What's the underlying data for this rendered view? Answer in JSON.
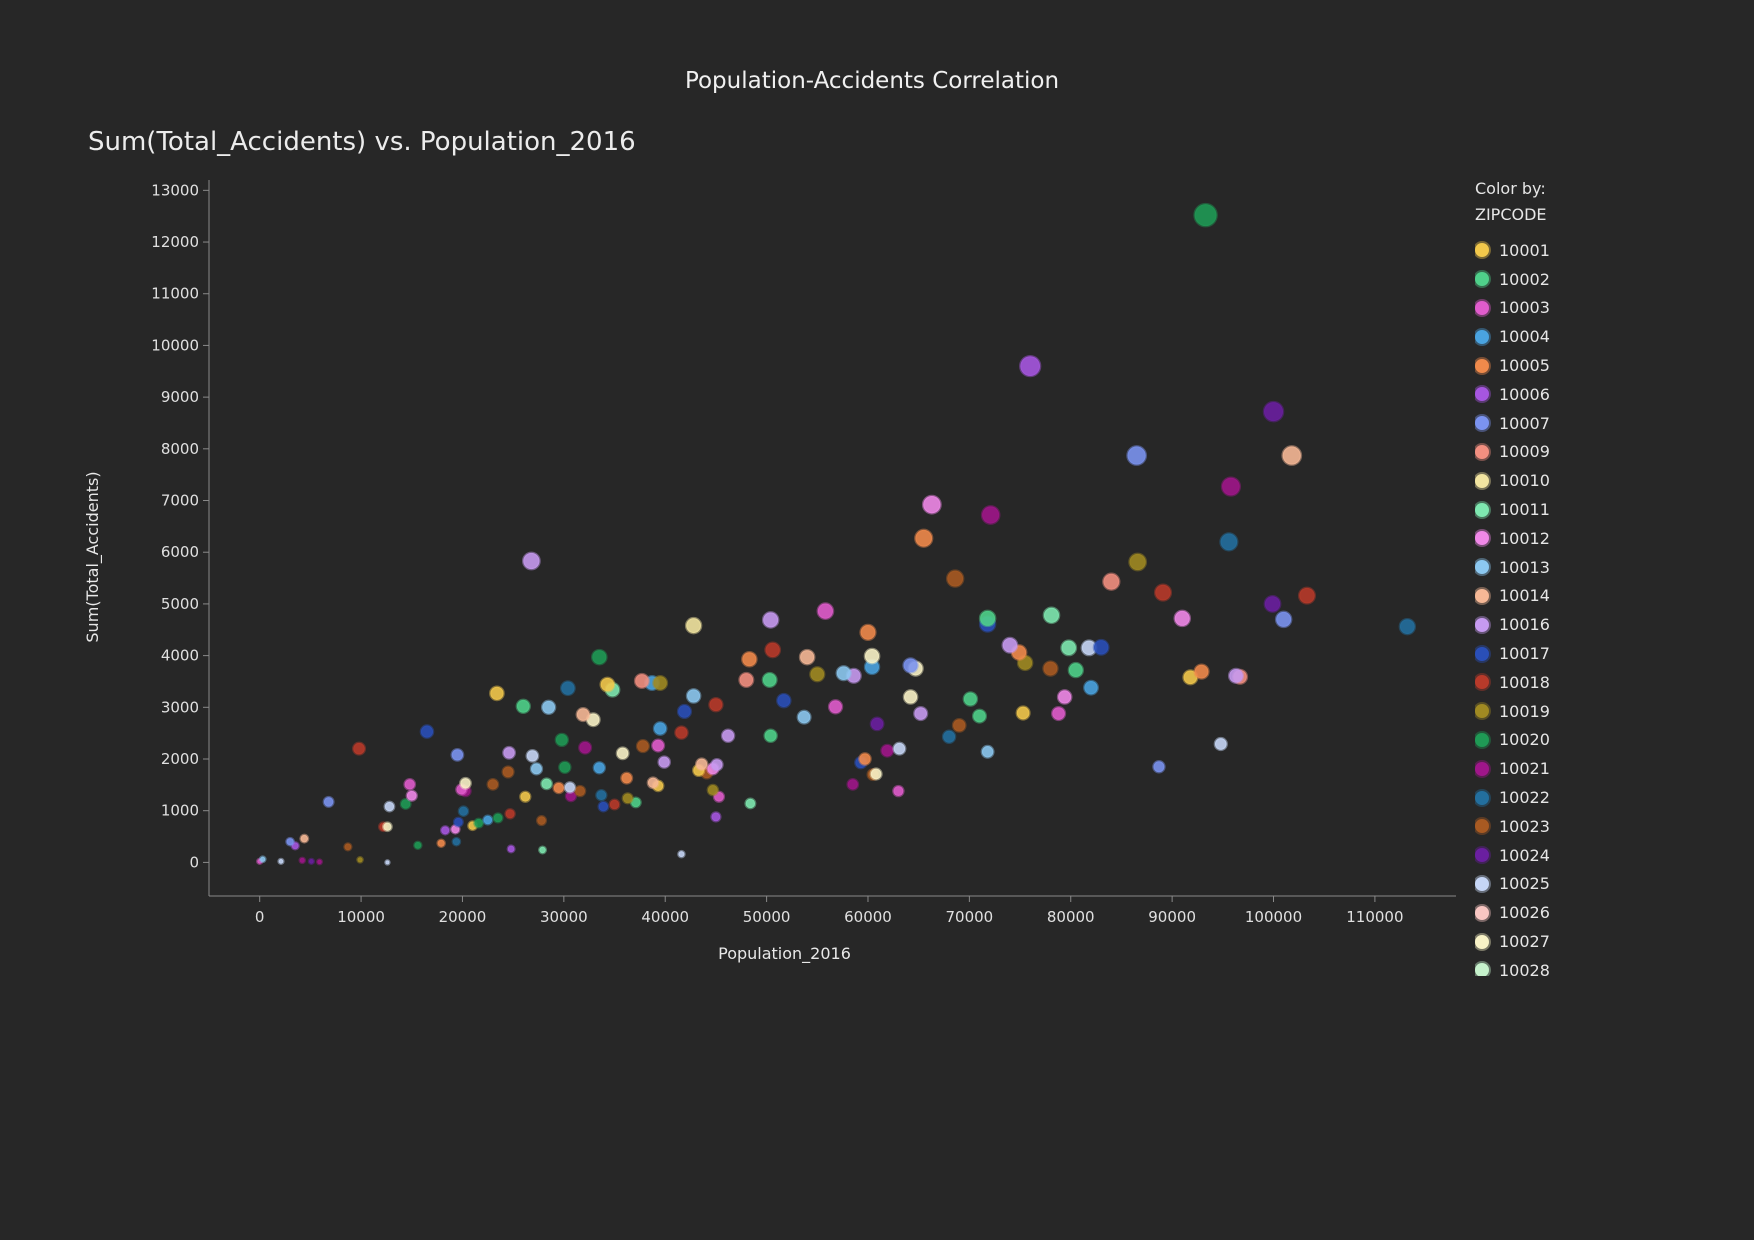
{
  "dashboard_title": "Population-Accidents Correlation",
  "legend": {
    "heading_line1": "Color by:",
    "heading_line2": "ZIPCODE"
  },
  "chart_data": {
    "type": "scatter",
    "title": "Sum(Total_Accidents) vs. Population_2016",
    "xlabel": "Population_2016",
    "ylabel": "Sum(Total_Accidents)",
    "xlim": [
      -5000,
      118000
    ],
    "ylim": [
      -650,
      13200
    ],
    "x_ticks": [
      0,
      10000,
      20000,
      30000,
      40000,
      50000,
      60000,
      70000,
      80000,
      90000,
      100000,
      110000
    ],
    "y_ticks": [
      0,
      1000,
      2000,
      3000,
      4000,
      5000,
      6000,
      7000,
      8000,
      9000,
      10000,
      11000,
      12000,
      13000
    ],
    "legend_title": "Color by: ZIPCODE",
    "legend_position": "right",
    "grid": false,
    "color_by": "ZIPCODE",
    "series": [
      {
        "name": "10001",
        "color": "#f2c84b"
      },
      {
        "name": "10002",
        "color": "#4fd08a"
      },
      {
        "name": "10003",
        "color": "#e05ccc"
      },
      {
        "name": "10004",
        "color": "#4aa3e0"
      },
      {
        "name": "10005",
        "color": "#f08a4b"
      },
      {
        "name": "10006",
        "color": "#a656e0"
      },
      {
        "name": "10007",
        "color": "#7b93f0"
      },
      {
        "name": "10009",
        "color": "#f28f80"
      },
      {
        "name": "10010",
        "color": "#f2e4a0"
      },
      {
        "name": "10011",
        "color": "#7ee8b0"
      },
      {
        "name": "10012",
        "color": "#f088e8"
      },
      {
        "name": "10013",
        "color": "#8cc8f0"
      },
      {
        "name": "10014",
        "color": "#f6b896"
      },
      {
        "name": "10016",
        "color": "#c69af0"
      },
      {
        "name": "10017",
        "color": "#2a4fb8"
      },
      {
        "name": "10018",
        "color": "#b83a2a"
      },
      {
        "name": "10019",
        "color": "#a08a22"
      },
      {
        "name": "10020",
        "color": "#1f9a55"
      },
      {
        "name": "10021",
        "color": "#a0168a"
      },
      {
        "name": "10022",
        "color": "#236f9e"
      },
      {
        "name": "10023",
        "color": "#a85a22"
      },
      {
        "name": "10024",
        "color": "#6a1fa0"
      },
      {
        "name": "10025",
        "color": "#c6d6f6"
      },
      {
        "name": "10026",
        "color": "#f8c6c2"
      },
      {
        "name": "10027",
        "color": "#f8f2c6"
      },
      {
        "name": "10028",
        "color": "#c6f2cc"
      }
    ],
    "points": [
      {
        "x": 93300,
        "y": 12520,
        "zip": "10020"
      },
      {
        "x": 76000,
        "y": 9600,
        "zip": "10006"
      },
      {
        "x": 100000,
        "y": 8720,
        "zip": "10024"
      },
      {
        "x": 86500,
        "y": 7870,
        "zip": "10007"
      },
      {
        "x": 101800,
        "y": 7870,
        "zip": "10014"
      },
      {
        "x": 95800,
        "y": 7270,
        "zip": "10021"
      },
      {
        "x": 66300,
        "y": 6920,
        "zip": "10012"
      },
      {
        "x": 72100,
        "y": 6720,
        "zip": "10021"
      },
      {
        "x": 65500,
        "y": 6270,
        "zip": "10005"
      },
      {
        "x": 95600,
        "y": 6200,
        "zip": "10022"
      },
      {
        "x": 26800,
        "y": 5830,
        "zip": "10016"
      },
      {
        "x": 86600,
        "y": 5810,
        "zip": "10019"
      },
      {
        "x": 68600,
        "y": 5490,
        "zip": "10023"
      },
      {
        "x": 84000,
        "y": 5430,
        "zip": "10009"
      },
      {
        "x": 89100,
        "y": 5220,
        "zip": "10018"
      },
      {
        "x": 103300,
        "y": 5160,
        "zip": "10018"
      },
      {
        "x": 99900,
        "y": 5000,
        "zip": "10024"
      },
      {
        "x": 55800,
        "y": 4860,
        "zip": "10003"
      },
      {
        "x": 78100,
        "y": 4780,
        "zip": "10011"
      },
      {
        "x": 71800,
        "y": 4720,
        "zip": "10002"
      },
      {
        "x": 91000,
        "y": 4720,
        "zip": "10012"
      },
      {
        "x": 101000,
        "y": 4700,
        "zip": "10007"
      },
      {
        "x": 50400,
        "y": 4690,
        "zip": "10016"
      },
      {
        "x": 71800,
        "y": 4610,
        "zip": "10017"
      },
      {
        "x": 42800,
        "y": 4580,
        "zip": "10010"
      },
      {
        "x": 113200,
        "y": 4560,
        "zip": "10022"
      },
      {
        "x": 60000,
        "y": 4450,
        "zip": "10005"
      },
      {
        "x": 74000,
        "y": 4200,
        "zip": "10016"
      },
      {
        "x": 79800,
        "y": 4150,
        "zip": "10011"
      },
      {
        "x": 81800,
        "y": 4150,
        "zip": "10025"
      },
      {
        "x": 83000,
        "y": 4160,
        "zip": "10017"
      },
      {
        "x": 50600,
        "y": 4110,
        "zip": "10018"
      },
      {
        "x": 74900,
        "y": 4060,
        "zip": "10005"
      },
      {
        "x": 60400,
        "y": 3990,
        "zip": "10027"
      },
      {
        "x": 33500,
        "y": 3970,
        "zip": "10020"
      },
      {
        "x": 54000,
        "y": 3970,
        "zip": "10014"
      },
      {
        "x": 48300,
        "y": 3930,
        "zip": "10005"
      },
      {
        "x": 75500,
        "y": 3860,
        "zip": "10019"
      },
      {
        "x": 64200,
        "y": 3810,
        "zip": "10007"
      },
      {
        "x": 64700,
        "y": 3750,
        "zip": "10027"
      },
      {
        "x": 60400,
        "y": 3780,
        "zip": "10004"
      },
      {
        "x": 78000,
        "y": 3750,
        "zip": "10023"
      },
      {
        "x": 80500,
        "y": 3720,
        "zip": "10002"
      },
      {
        "x": 92900,
        "y": 3690,
        "zip": "10005"
      },
      {
        "x": 57600,
        "y": 3660,
        "zip": "10013"
      },
      {
        "x": 55000,
        "y": 3640,
        "zip": "10019"
      },
      {
        "x": 58600,
        "y": 3610,
        "zip": "10016"
      },
      {
        "x": 96300,
        "y": 3610,
        "zip": "10016"
      },
      {
        "x": 96700,
        "y": 3590,
        "zip": "10009"
      },
      {
        "x": 91800,
        "y": 3580,
        "zip": "10001"
      },
      {
        "x": 48000,
        "y": 3530,
        "zip": "10009"
      },
      {
        "x": 50300,
        "y": 3530,
        "zip": "10002"
      },
      {
        "x": 37700,
        "y": 3510,
        "zip": "10009"
      },
      {
        "x": 38700,
        "y": 3470,
        "zip": "10004"
      },
      {
        "x": 39500,
        "y": 3470,
        "zip": "10019"
      },
      {
        "x": 34300,
        "y": 3440,
        "zip": "10001"
      },
      {
        "x": 82000,
        "y": 3380,
        "zip": "10004"
      },
      {
        "x": 30400,
        "y": 3370,
        "zip": "10022"
      },
      {
        "x": 34800,
        "y": 3340,
        "zip": "10011"
      },
      {
        "x": 23400,
        "y": 3270,
        "zip": "10001"
      },
      {
        "x": 42800,
        "y": 3220,
        "zip": "10013"
      },
      {
        "x": 64200,
        "y": 3200,
        "zip": "10027"
      },
      {
        "x": 79400,
        "y": 3200,
        "zip": "10012"
      },
      {
        "x": 70100,
        "y": 3160,
        "zip": "10002"
      },
      {
        "x": 51700,
        "y": 3130,
        "zip": "10017"
      },
      {
        "x": 45000,
        "y": 3050,
        "zip": "10018"
      },
      {
        "x": 56800,
        "y": 3010,
        "zip": "10003"
      },
      {
        "x": 26000,
        "y": 3020,
        "zip": "10002"
      },
      {
        "x": 28500,
        "y": 3000,
        "zip": "10013"
      },
      {
        "x": 41900,
        "y": 2920,
        "zip": "10017"
      },
      {
        "x": 65200,
        "y": 2880,
        "zip": "10016"
      },
      {
        "x": 75300,
        "y": 2890,
        "zip": "10001"
      },
      {
        "x": 78800,
        "y": 2880,
        "zip": "10003"
      },
      {
        "x": 31900,
        "y": 2860,
        "zip": "10014"
      },
      {
        "x": 71000,
        "y": 2830,
        "zip": "10002"
      },
      {
        "x": 53700,
        "y": 2810,
        "zip": "10013"
      },
      {
        "x": 32900,
        "y": 2760,
        "zip": "10027"
      },
      {
        "x": 60900,
        "y": 2680,
        "zip": "10024"
      },
      {
        "x": 69000,
        "y": 2650,
        "zip": "10023"
      },
      {
        "x": 39500,
        "y": 2590,
        "zip": "10004"
      },
      {
        "x": 16500,
        "y": 2530,
        "zip": "10017"
      },
      {
        "x": 41600,
        "y": 2510,
        "zip": "10018"
      },
      {
        "x": 46200,
        "y": 2450,
        "zip": "10016"
      },
      {
        "x": 50400,
        "y": 2450,
        "zip": "10002"
      },
      {
        "x": 68000,
        "y": 2430,
        "zip": "10022"
      },
      {
        "x": 29800,
        "y": 2370,
        "zip": "10020"
      },
      {
        "x": 94800,
        "y": 2290,
        "zip": "10025"
      },
      {
        "x": 37800,
        "y": 2250,
        "zip": "10023"
      },
      {
        "x": 39300,
        "y": 2260,
        "zip": "10003"
      },
      {
        "x": 32100,
        "y": 2220,
        "zip": "10021"
      },
      {
        "x": 9800,
        "y": 2200,
        "zip": "10018"
      },
      {
        "x": 63100,
        "y": 2200,
        "zip": "10025"
      },
      {
        "x": 61900,
        "y": 2160,
        "zip": "10021"
      },
      {
        "x": 71800,
        "y": 2140,
        "zip": "10013"
      },
      {
        "x": 24600,
        "y": 2120,
        "zip": "10016"
      },
      {
        "x": 35800,
        "y": 2110,
        "zip": "10027"
      },
      {
        "x": 19500,
        "y": 2080,
        "zip": "10007"
      },
      {
        "x": 26900,
        "y": 2060,
        "zip": "10025"
      },
      {
        "x": 59700,
        "y": 2000,
        "zip": "10005"
      },
      {
        "x": 39900,
        "y": 1940,
        "zip": "10016"
      },
      {
        "x": 59300,
        "y": 1930,
        "zip": "10017"
      },
      {
        "x": 43600,
        "y": 1900,
        "zip": "10014"
      },
      {
        "x": 45100,
        "y": 1890,
        "zip": "10016"
      },
      {
        "x": 88700,
        "y": 1850,
        "zip": "10007"
      },
      {
        "x": 30100,
        "y": 1840,
        "zip": "10020"
      },
      {
        "x": 33500,
        "y": 1830,
        "zip": "10004"
      },
      {
        "x": 27300,
        "y": 1810,
        "zip": "10013"
      },
      {
        "x": 44700,
        "y": 1810,
        "zip": "10012"
      },
      {
        "x": 43300,
        "y": 1780,
        "zip": "10001"
      },
      {
        "x": 24500,
        "y": 1750,
        "zip": "10023"
      },
      {
        "x": 44100,
        "y": 1730,
        "zip": "10023"
      },
      {
        "x": 60800,
        "y": 1710,
        "zip": "10027"
      },
      {
        "x": 60500,
        "y": 1700,
        "zip": "10023"
      },
      {
        "x": 36200,
        "y": 1630,
        "zip": "10005"
      },
      {
        "x": 28300,
        "y": 1520,
        "zip": "10011"
      },
      {
        "x": 20300,
        "y": 1530,
        "zip": "10027"
      },
      {
        "x": 38800,
        "y": 1540,
        "zip": "10014"
      },
      {
        "x": 14800,
        "y": 1510,
        "zip": "10003"
      },
      {
        "x": 23000,
        "y": 1510,
        "zip": "10023"
      },
      {
        "x": 39300,
        "y": 1480,
        "zip": "10001"
      },
      {
        "x": 58500,
        "y": 1510,
        "zip": "10021"
      },
      {
        "x": 30600,
        "y": 1450,
        "zip": "10025"
      },
      {
        "x": 29500,
        "y": 1440,
        "zip": "10005"
      },
      {
        "x": 19900,
        "y": 1410,
        "zip": "10003"
      },
      {
        "x": 20300,
        "y": 1380,
        "zip": "10021"
      },
      {
        "x": 31600,
        "y": 1380,
        "zip": "10023"
      },
      {
        "x": 44700,
        "y": 1400,
        "zip": "10019"
      },
      {
        "x": 63000,
        "y": 1380,
        "zip": "10003"
      },
      {
        "x": 15000,
        "y": 1290,
        "zip": "10012"
      },
      {
        "x": 26200,
        "y": 1270,
        "zip": "10001"
      },
      {
        "x": 30700,
        "y": 1280,
        "zip": "10021"
      },
      {
        "x": 33700,
        "y": 1300,
        "zip": "10022"
      },
      {
        "x": 45300,
        "y": 1270,
        "zip": "10003"
      },
      {
        "x": 36300,
        "y": 1240,
        "zip": "10019"
      },
      {
        "x": 6800,
        "y": 1170,
        "zip": "10007"
      },
      {
        "x": 14400,
        "y": 1130,
        "zip": "10020"
      },
      {
        "x": 35000,
        "y": 1120,
        "zip": "10018"
      },
      {
        "x": 37100,
        "y": 1160,
        "zip": "10002"
      },
      {
        "x": 48400,
        "y": 1140,
        "zip": "10011"
      },
      {
        "x": 33900,
        "y": 1080,
        "zip": "10017"
      },
      {
        "x": 12800,
        "y": 1080,
        "zip": "10025"
      },
      {
        "x": 20100,
        "y": 990,
        "zip": "10022"
      },
      {
        "x": 24700,
        "y": 940,
        "zip": "10018"
      },
      {
        "x": 45000,
        "y": 880,
        "zip": "10006"
      },
      {
        "x": 23500,
        "y": 860,
        "zip": "10020"
      },
      {
        "x": 22500,
        "y": 820,
        "zip": "10004"
      },
      {
        "x": 27800,
        "y": 810,
        "zip": "10023"
      },
      {
        "x": 19600,
        "y": 780,
        "zip": "10017"
      },
      {
        "x": 21600,
        "y": 760,
        "zip": "10020"
      },
      {
        "x": 21000,
        "y": 710,
        "zip": "10001"
      },
      {
        "x": 12200,
        "y": 690,
        "zip": "10018"
      },
      {
        "x": 12600,
        "y": 690,
        "zip": "10027"
      },
      {
        "x": 19300,
        "y": 640,
        "zip": "10012"
      },
      {
        "x": 18300,
        "y": 620,
        "zip": "10006"
      },
      {
        "x": 3000,
        "y": 400,
        "zip": "10007"
      },
      {
        "x": 4400,
        "y": 460,
        "zip": "10014"
      },
      {
        "x": 19400,
        "y": 400,
        "zip": "10022"
      },
      {
        "x": 17900,
        "y": 370,
        "zip": "10005"
      },
      {
        "x": 3500,
        "y": 320,
        "zip": "10006"
      },
      {
        "x": 15600,
        "y": 330,
        "zip": "10020"
      },
      {
        "x": 8700,
        "y": 300,
        "zip": "10023"
      },
      {
        "x": 24800,
        "y": 260,
        "zip": "10006"
      },
      {
        "x": 27900,
        "y": 240,
        "zip": "10011"
      },
      {
        "x": 41600,
        "y": 160,
        "zip": "10025"
      },
      {
        "x": 300,
        "y": 60,
        "zip": "10013"
      },
      {
        "x": 9900,
        "y": 50,
        "zip": "10019"
      },
      {
        "x": 4200,
        "y": 40,
        "zip": "10021"
      },
      {
        "x": 0,
        "y": 20,
        "zip": "10003"
      },
      {
        "x": 2100,
        "y": 20,
        "zip": "10025"
      },
      {
        "x": 5100,
        "y": 20,
        "zip": "10024"
      },
      {
        "x": 5900,
        "y": 10,
        "zip": "10021"
      },
      {
        "x": 12600,
        "y": 0,
        "zip": "10025"
      }
    ]
  }
}
